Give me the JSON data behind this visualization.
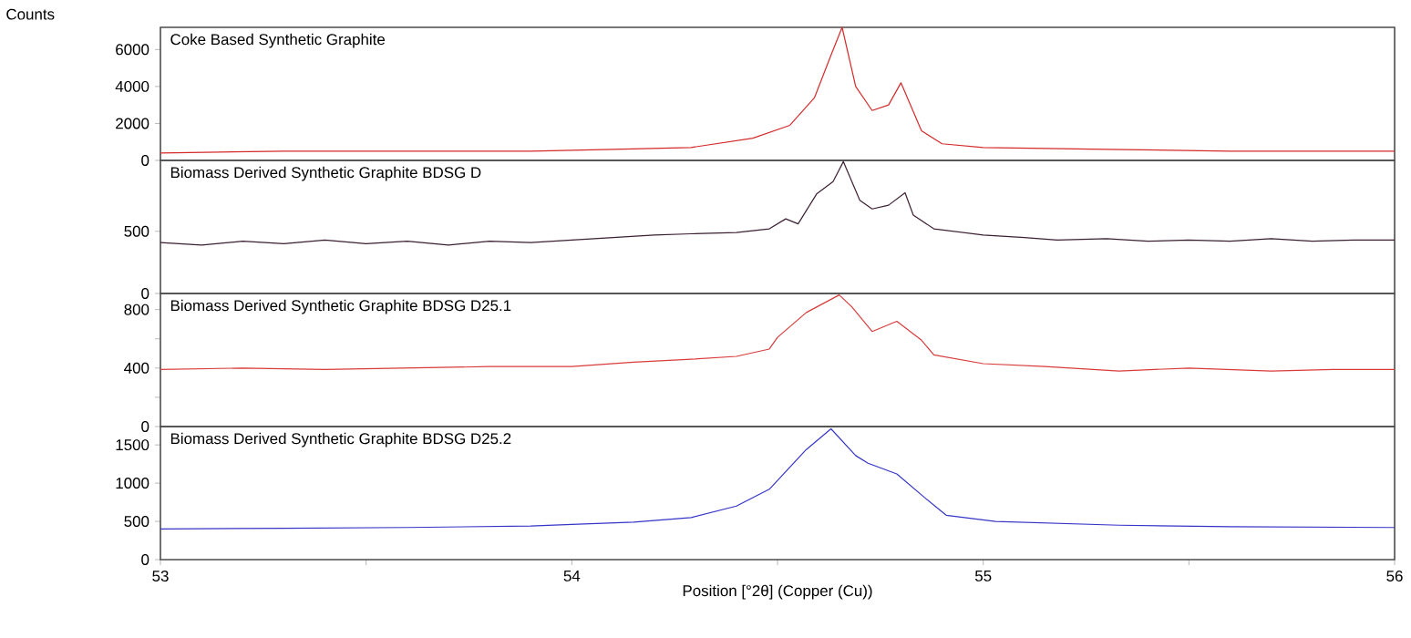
{
  "chart_data": [
    {
      "type": "line",
      "title": "Coke Based Synthetic Graphite",
      "ylabel": "Counts",
      "color": "#d42a2a",
      "xlim": [
        53,
        56
      ],
      "ylim": [
        0,
        7200
      ],
      "yticks": [
        0,
        2000,
        4000,
        6000
      ],
      "tick_labels": "y",
      "grid": false,
      "x": [
        53,
        53.3,
        53.6,
        53.9,
        54.1,
        54.29,
        54.44,
        54.53,
        54.59,
        54.63,
        54.657,
        54.69,
        54.73,
        54.77,
        54.8,
        54.85,
        54.9,
        55.0,
        55.3,
        55.6,
        56
      ],
      "values": [
        400,
        500,
        500,
        500,
        600,
        700,
        1200,
        1900,
        3400,
        5700,
        7200,
        4000,
        2700,
        3000,
        4200,
        1600,
        900,
        700,
        600,
        500,
        500
      ]
    },
    {
      "type": "line",
      "title": "Biomass Derived Synthetic Graphite BDSG D",
      "color": "#3b1f33",
      "xlim": [
        53,
        56
      ],
      "ylim": [
        0,
        1070
      ],
      "yticks": [
        0,
        500
      ],
      "tick_labels": "y",
      "grid": false,
      "x": [
        53,
        53.1,
        53.2,
        53.3,
        53.4,
        53.5,
        53.6,
        53.7,
        53.8,
        53.9,
        54.0,
        54.1,
        54.2,
        54.29,
        54.4,
        54.48,
        54.52,
        54.55,
        54.595,
        54.635,
        54.66,
        54.7,
        54.73,
        54.77,
        54.81,
        54.83,
        54.88,
        55.0,
        55.1,
        55.18,
        55.3,
        55.4,
        55.5,
        55.6,
        55.7,
        55.8,
        55.9,
        56
      ],
      "values": [
        410,
        390,
        420,
        400,
        430,
        400,
        420,
        390,
        420,
        410,
        430,
        450,
        470,
        480,
        490,
        520,
        600,
        560,
        800,
        900,
        1060,
        750,
        680,
        710,
        810,
        630,
        520,
        470,
        450,
        430,
        440,
        420,
        430,
        420,
        440,
        420,
        430,
        430
      ]
    },
    {
      "type": "line",
      "title": "Biomass Derived Synthetic Graphite BDSG D25.1",
      "color": "#d93b3b",
      "xlim": [
        53,
        56
      ],
      "ylim": [
        0,
        910
      ],
      "yticks": [
        0,
        {
          "value": 200,
          "label": null
        },
        400,
        {
          "value": 600,
          "label": null
        },
        800
      ],
      "tick_labels": "y",
      "grid": false,
      "x": [
        53,
        53.2,
        53.4,
        53.6,
        53.8,
        54.0,
        54.15,
        54.29,
        54.4,
        54.48,
        54.5,
        54.57,
        54.65,
        54.68,
        54.73,
        54.79,
        54.85,
        54.88,
        55.0,
        55.15,
        55.33,
        55.5,
        55.7,
        55.85,
        56
      ],
      "values": [
        390,
        400,
        390,
        400,
        410,
        410,
        440,
        460,
        480,
        530,
        610,
        780,
        900,
        820,
        650,
        720,
        590,
        490,
        430,
        410,
        380,
        400,
        380,
        390,
        390
      ]
    },
    {
      "type": "line",
      "title": "Biomass Derived Synthetic Graphite BDSG D25.2",
      "xlabel": "Position [°2θ] (Copper (Cu))",
      "color": "#3535c8",
      "xlim": [
        53,
        56
      ],
      "xticks": [
        53,
        {
          "value": 53.5,
          "label": null
        },
        54,
        {
          "value": 54.5,
          "label": null
        },
        55,
        {
          "value": 55.5,
          "label": null
        },
        56
      ],
      "ylim": [
        0,
        1740
      ],
      "yticks": [
        0,
        500,
        1000,
        1500
      ],
      "grid": false,
      "x": [
        53,
        53.3,
        53.6,
        53.9,
        54.0,
        54.15,
        54.29,
        54.4,
        54.48,
        54.57,
        54.63,
        54.69,
        54.72,
        54.79,
        54.86,
        54.91,
        55.03,
        55.33,
        55.6,
        56
      ],
      "values": [
        400,
        410,
        420,
        440,
        460,
        490,
        550,
        700,
        920,
        1440,
        1710,
        1360,
        1260,
        1120,
        800,
        580,
        500,
        450,
        430,
        420
      ]
    }
  ]
}
